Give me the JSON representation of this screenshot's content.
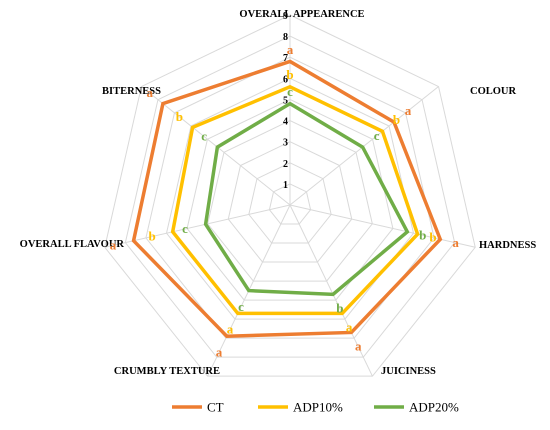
{
  "chart_data": {
    "type": "radar",
    "axes": [
      "OVERALL APPEARENCE",
      "COLOUR",
      "HARDNESS",
      "JUICINESS",
      "CRUMBLY TEXTURE",
      "OVERALL FLAVOUR",
      "BITERNESS"
    ],
    "range": [
      0,
      9
    ],
    "ticks": [
      "1",
      "2",
      "3",
      "4",
      "5",
      "6",
      "7",
      "8",
      "9"
    ],
    "grid": true,
    "legend_position": "bottom",
    "series": [
      {
        "name": "CT",
        "color": "#ED7D31",
        "values": [
          6.8,
          6.3,
          7.3,
          6.7,
          6.9,
          7.6,
          7.7
        ],
        "letters": [
          "a",
          "a",
          "a",
          "a",
          "a",
          "a",
          "a"
        ]
      },
      {
        "name": "ADP10%",
        "color": "#FFC000",
        "values": [
          5.6,
          5.6,
          6.2,
          5.7,
          5.7,
          5.7,
          5.9
        ],
        "letters": [
          "b",
          "b",
          "b",
          "a",
          "a",
          "b",
          "b"
        ]
      },
      {
        "name": "ADP20%",
        "color": "#70AD47",
        "values": [
          4.8,
          4.4,
          5.7,
          4.7,
          4.5,
          4.1,
          4.4
        ],
        "letters": [
          "c",
          "c",
          "b",
          "b",
          "c",
          "c",
          "c"
        ]
      }
    ]
  }
}
